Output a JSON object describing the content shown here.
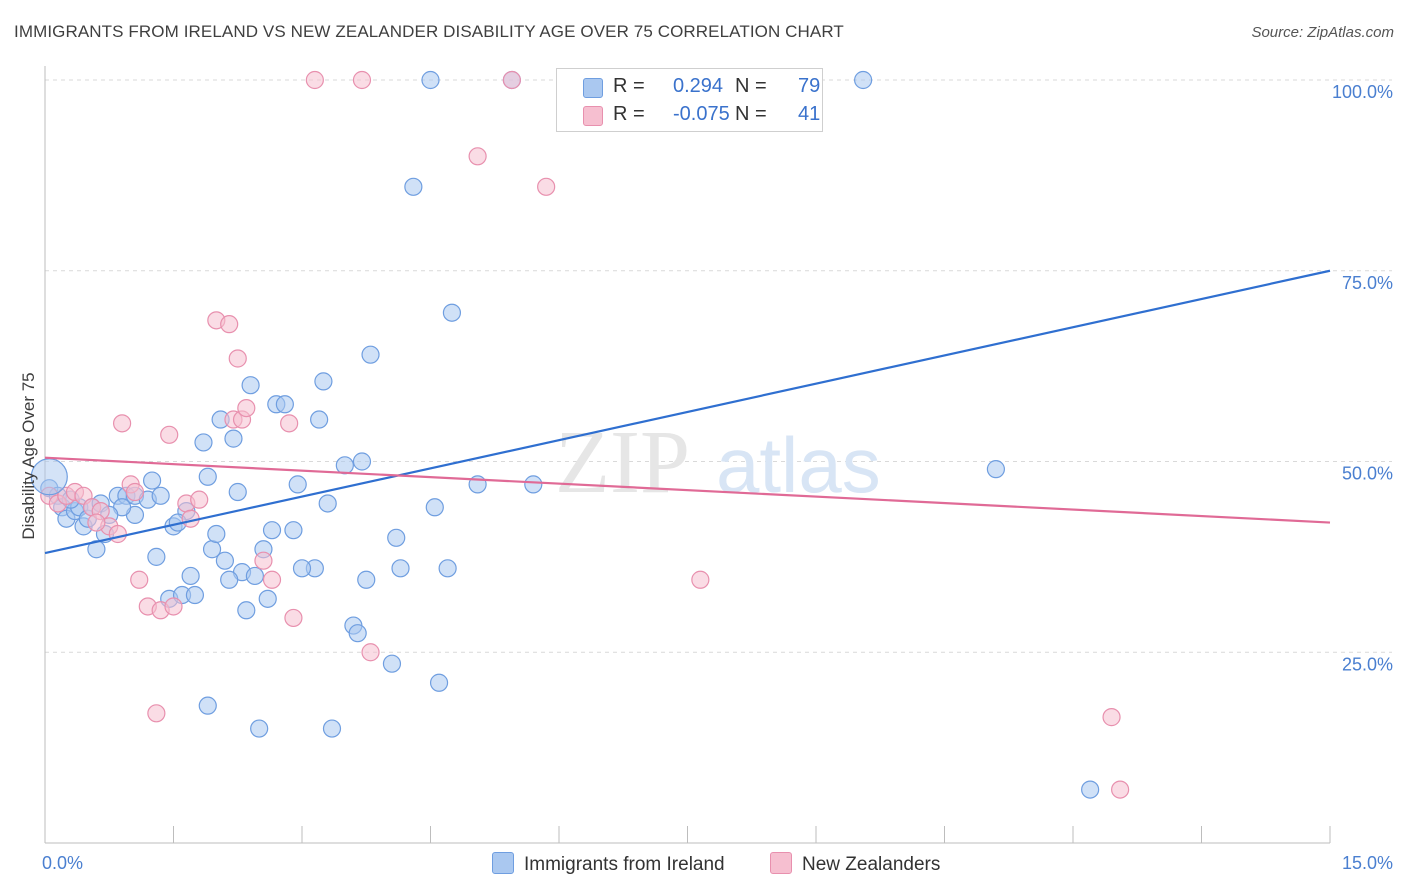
{
  "header": {
    "title": "IMMIGRANTS FROM IRELAND VS NEW ZEALANDER DISABILITY AGE OVER 75 CORRELATION CHART",
    "source": "Source: ZipAtlas.com"
  },
  "legend_box": {
    "rows": [
      {
        "r_key": "R =",
        "r_val": "0.294",
        "n_key": "N =",
        "n_val": "79"
      },
      {
        "r_key": "R =",
        "r_val": "-0.075",
        "n_key": "N =",
        "n_val": "41"
      }
    ]
  },
  "bottom_legend": {
    "series1": "Immigrants from Ireland",
    "series2": "New Zealanders"
  },
  "colors": {
    "blue_fill": "#aac8f0",
    "blue_stroke": "#6f9ee0",
    "blue_line": "#2f6fd0",
    "pink_fill": "#f6bfd0",
    "pink_stroke": "#e890ae",
    "pink_line": "#e06a96"
  },
  "chart_data": {
    "type": "scatter",
    "xlabel": "",
    "ylabel": "Disability Age Over 75",
    "xlim": [
      0,
      15
    ],
    "ylim": [
      0,
      100
    ],
    "x_ticks_labels": [
      "0.0%",
      "15.0%"
    ],
    "y_ticks": [
      25,
      50,
      75,
      100
    ],
    "y_tick_labels": [
      "25.0%",
      "50.0%",
      "75.0%",
      "100.0%"
    ],
    "watermark": "ZIPatlas",
    "series": [
      {
        "name": "Immigrants from Ireland",
        "color": "#6f9ee0",
        "trend": [
          [
            0,
            38
          ],
          [
            15,
            75
          ]
        ],
        "points": [
          [
            0.05,
            46.5
          ],
          [
            0.15,
            45.5
          ],
          [
            0.2,
            44.0
          ],
          [
            0.25,
            42.5
          ],
          [
            0.35,
            43.5
          ],
          [
            0.4,
            44.0
          ],
          [
            0.45,
            41.5
          ],
          [
            0.5,
            42.5
          ],
          [
            0.55,
            44.0
          ],
          [
            0.6,
            38.5
          ],
          [
            0.65,
            44.5
          ],
          [
            0.7,
            40.5
          ],
          [
            0.85,
            45.5
          ],
          [
            0.95,
            45.5
          ],
          [
            1.05,
            45.5
          ],
          [
            1.05,
            43.0
          ],
          [
            1.2,
            45.0
          ],
          [
            1.25,
            47.5
          ],
          [
            1.3,
            37.5
          ],
          [
            1.45,
            32.0
          ],
          [
            1.5,
            41.5
          ],
          [
            1.6,
            32.5
          ],
          [
            1.65,
            43.5
          ],
          [
            1.7,
            35.0
          ],
          [
            1.75,
            32.5
          ],
          [
            1.85,
            52.5
          ],
          [
            1.9,
            18.0
          ],
          [
            1.9,
            48.0
          ],
          [
            1.95,
            38.5
          ],
          [
            2.0,
            40.5
          ],
          [
            2.05,
            55.5
          ],
          [
            2.1,
            37.0
          ],
          [
            2.2,
            53.0
          ],
          [
            2.25,
            46.0
          ],
          [
            2.3,
            35.5
          ],
          [
            2.35,
            30.5
          ],
          [
            2.4,
            60.0
          ],
          [
            2.45,
            35.0
          ],
          [
            2.5,
            15.0
          ],
          [
            2.55,
            38.5
          ],
          [
            2.6,
            32.0
          ],
          [
            2.65,
            41.0
          ],
          [
            2.7,
            57.5
          ],
          [
            2.8,
            57.5
          ],
          [
            2.9,
            41.0
          ],
          [
            2.95,
            47.0
          ],
          [
            3.15,
            36.0
          ],
          [
            3.2,
            55.5
          ],
          [
            3.25,
            60.5
          ],
          [
            3.3,
            44.5
          ],
          [
            3.35,
            15.0
          ],
          [
            3.5,
            49.5
          ],
          [
            3.6,
            28.5
          ],
          [
            3.65,
            27.5
          ],
          [
            3.7,
            50.0
          ],
          [
            3.75,
            34.5
          ],
          [
            3.8,
            64.0
          ],
          [
            4.05,
            23.5
          ],
          [
            4.1,
            40.0
          ],
          [
            4.15,
            36.0
          ],
          [
            4.3,
            86.0
          ],
          [
            4.5,
            100.0
          ],
          [
            4.55,
            44.0
          ],
          [
            4.6,
            21.0
          ],
          [
            4.7,
            36.0
          ],
          [
            4.75,
            69.5
          ],
          [
            5.05,
            47.0
          ],
          [
            5.45,
            100.0
          ],
          [
            5.7,
            47.0
          ],
          [
            9.55,
            100.0
          ],
          [
            11.1,
            49.0
          ],
          [
            12.2,
            7.0
          ],
          [
            0.9,
            44.0
          ],
          [
            1.35,
            45.5
          ],
          [
            0.75,
            43.0
          ],
          [
            2.15,
            34.5
          ],
          [
            1.55,
            42.0
          ],
          [
            3.0,
            36.0
          ],
          [
            0.3,
            45.0
          ]
        ]
      },
      {
        "name": "New Zealanders",
        "color": "#e890ae",
        "trend": [
          [
            0,
            50.5
          ],
          [
            15,
            42
          ]
        ],
        "points": [
          [
            0.05,
            45.5
          ],
          [
            0.15,
            44.5
          ],
          [
            0.25,
            45.5
          ],
          [
            0.35,
            46.0
          ],
          [
            0.45,
            45.5
          ],
          [
            0.55,
            44.0
          ],
          [
            0.65,
            43.5
          ],
          [
            0.75,
            41.5
          ],
          [
            0.85,
            40.5
          ],
          [
            0.9,
            55.0
          ],
          [
            1.0,
            47.0
          ],
          [
            1.05,
            46.0
          ],
          [
            1.1,
            34.5
          ],
          [
            1.2,
            31.0
          ],
          [
            1.3,
            17.0
          ],
          [
            1.35,
            30.5
          ],
          [
            1.45,
            53.5
          ],
          [
            1.5,
            31.0
          ],
          [
            1.65,
            44.5
          ],
          [
            1.7,
            42.5
          ],
          [
            2.0,
            68.5
          ],
          [
            2.15,
            68.0
          ],
          [
            2.2,
            55.5
          ],
          [
            2.25,
            63.5
          ],
          [
            2.3,
            55.5
          ],
          [
            2.35,
            57.0
          ],
          [
            2.55,
            37.0
          ],
          [
            2.65,
            34.5
          ],
          [
            2.85,
            55.0
          ],
          [
            2.9,
            29.5
          ],
          [
            3.15,
            100.0
          ],
          [
            3.7,
            100.0
          ],
          [
            3.8,
            25.0
          ],
          [
            5.05,
            90.0
          ],
          [
            5.45,
            100.0
          ],
          [
            5.85,
            86.0
          ],
          [
            7.65,
            34.5
          ],
          [
            12.45,
            16.5
          ],
          [
            12.55,
            7.0
          ],
          [
            0.6,
            42.0
          ],
          [
            1.8,
            45.0
          ]
        ]
      }
    ]
  }
}
